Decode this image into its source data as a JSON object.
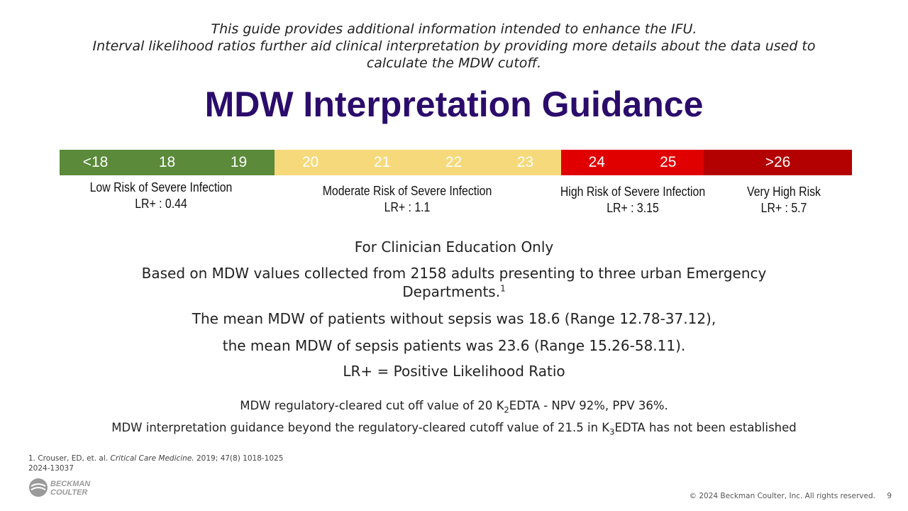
{
  "intro": [
    "This guide provides additional information intended to enhance the IFU.",
    "Interval likelihood ratios further aid clinical interpretation by providing more details about the data used to",
    "calculate the MDW cutoff."
  ],
  "title": "MDW Interpretation Guidance",
  "scale": [
    {
      "labels": [
        "<18",
        "18",
        "19"
      ]
    },
    {
      "labels": [
        "20",
        "21",
        "22",
        "23"
      ]
    },
    {
      "labels": [
        "24",
        "25"
      ]
    },
    {
      "labels": [
        ">26"
      ]
    }
  ],
  "risks": [
    {
      "label": "Low Risk of Severe Infection",
      "lr": "LR+ : 0.44"
    },
    {
      "label": "Moderate Risk of Severe Infection",
      "lr": "LR+ : 1.1"
    },
    {
      "label": "High Risk of Severe Infection",
      "lr": "LR+ : 3.15"
    },
    {
      "label": "Very High Risk",
      "lr": "LR+ : 5.7"
    }
  ],
  "body": {
    "education": "For Clinician Education Only",
    "based_on": "Based on MDW values collected from 2158 adults presenting to three urban Emergency",
    "departments": "Departments.",
    "departments_ref": "1",
    "mean_without": "The mean MDW of patients without sepsis was 18.6 (Range 12.78-37.12),",
    "mean_sepsis": "the mean MDW of sepsis patients was 23.6 (Range 15.26-58.11).",
    "lr_def": "LR+ = Positive Likelihood Ratio"
  },
  "regulatory": [
    {
      "before": "MDW regulatory-cleared cut off value of 20 K",
      "sub": "2",
      "after": "EDTA - NPV 92%, PPV 36%."
    },
    {
      "before": "MDW interpretation guidance beyond the regulatory-cleared cutoff value of 21.5 in K",
      "sub": "3",
      "after": "EDTA has not been established"
    }
  ],
  "footnote": {
    "before": "1. Crouser, ED, et. al. ",
    "journal": "Critical Care Medicine.",
    "after": " 2019; 47(8) 1018-1025"
  },
  "doc_code": "2024-13037",
  "logo": [
    "BECKMAN",
    "COULTER"
  ],
  "copyright": "© 2024 Beckman Coulter, Inc. All rights reserved.",
  "page_number": "9"
}
